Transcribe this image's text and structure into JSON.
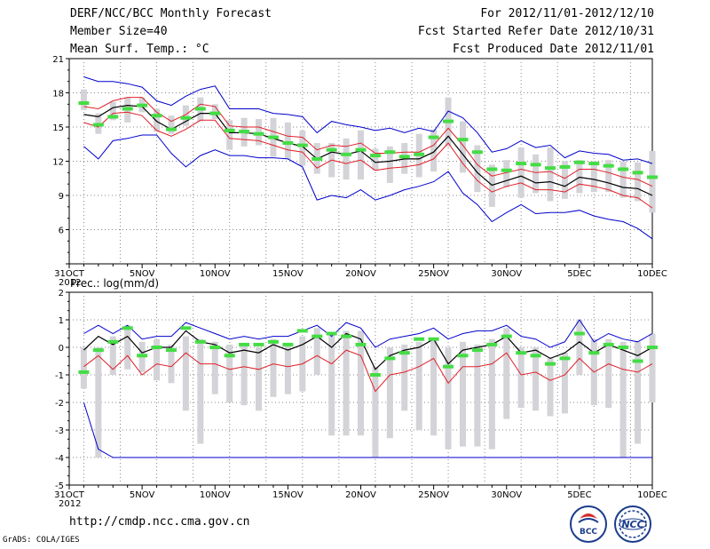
{
  "header": {
    "title": "DERF/NCC/BCC Monthly Forecast",
    "member_size": "Member Size=40",
    "variable": "Mean Surf. Temp.: °C",
    "period": "For 2012/11/01-2012/12/10",
    "started": "Fcst Started Refer Date 2012/10/31",
    "produced": "Fcst Produced Date 2012/11/01"
  },
  "footer": {
    "url": "http://cmdp.ncc.cma.gov.cn",
    "grads": "GrADS: COLA/IGES",
    "logo_bcc": "BCC",
    "logo_ncc": "NCC"
  },
  "colors": {
    "max_line": "#0000cc",
    "min_line": "#0000cc",
    "p90_line": "#e0202a",
    "p10_line": "#e0202a",
    "mean_line": "#000000",
    "box": "#d3d3d8",
    "obs_marker": "#44dd44",
    "grid": "#888888"
  },
  "chart_data": [
    {
      "type": "line",
      "title": "Mean Surf. Temp.: °C",
      "x_tick_labels": [
        "31OCT",
        "5NOV",
        "10NOV",
        "15NOV",
        "20NOV",
        "25NOV",
        "30NOV",
        "5DEC",
        "10DEC"
      ],
      "x_tick_days": [
        0,
        5,
        10,
        15,
        20,
        25,
        30,
        35,
        40
      ],
      "x_year_label": "2012",
      "ylim": [
        3,
        21
      ],
      "y_ticks": [
        3,
        6,
        9,
        12,
        15,
        18,
        21
      ],
      "y_tick_labels": [
        "",
        "6",
        "9",
        "12",
        "15",
        "18",
        "21"
      ],
      "days": [
        1,
        2,
        3,
        4,
        5,
        6,
        7,
        8,
        9,
        10,
        11,
        12,
        13,
        14,
        15,
        16,
        17,
        18,
        19,
        20,
        21,
        22,
        23,
        24,
        25,
        26,
        27,
        28,
        29,
        30,
        31,
        32,
        33,
        34,
        35,
        36,
        37,
        38,
        39,
        40
      ],
      "series": [
        {
          "name": "max",
          "values": [
            19.4,
            19.0,
            19.0,
            18.8,
            18.5,
            17.3,
            16.9,
            17.7,
            18.3,
            18.6,
            16.6,
            16.6,
            16.6,
            16.2,
            16.1,
            15.9,
            14.5,
            15.5,
            15.2,
            15.0,
            14.7,
            14.9,
            14.5,
            14.9,
            14.6,
            16.4,
            15.8,
            14.5,
            12.8,
            13.1,
            13.8,
            13.2,
            13.4,
            12.3,
            12.9,
            12.7,
            12.6,
            12.1,
            12.2,
            11.8
          ]
        },
        {
          "name": "p90",
          "values": [
            16.8,
            16.6,
            17.3,
            17.6,
            17.6,
            16.3,
            15.5,
            16.1,
            17.0,
            16.8,
            15.1,
            15.0,
            15.0,
            14.6,
            14.2,
            14.1,
            13.0,
            13.4,
            13.3,
            13.6,
            12.7,
            12.7,
            12.8,
            12.8,
            13.4,
            14.9,
            13.4,
            11.7,
            10.7,
            11.0,
            11.3,
            11.0,
            11.1,
            10.5,
            11.3,
            11.3,
            11.0,
            10.6,
            10.4,
            9.8
          ]
        },
        {
          "name": "mean",
          "values": [
            16.1,
            15.9,
            16.7,
            16.9,
            16.8,
            15.5,
            14.8,
            15.5,
            16.2,
            16.2,
            14.5,
            14.5,
            14.4,
            14.0,
            13.6,
            13.3,
            12.2,
            12.8,
            12.6,
            12.9,
            11.9,
            12.0,
            12.2,
            12.2,
            12.8,
            14.2,
            12.6,
            11.0,
            9.9,
            10.3,
            10.7,
            10.1,
            10.2,
            9.8,
            10.6,
            10.4,
            10.1,
            9.7,
            9.6,
            9.0
          ]
        },
        {
          "name": "p10",
          "values": [
            15.4,
            15.0,
            16.2,
            16.3,
            16.0,
            14.7,
            14.2,
            14.8,
            15.6,
            15.6,
            14.0,
            13.9,
            13.8,
            13.4,
            13.0,
            12.8,
            11.4,
            12.1,
            11.8,
            12.1,
            11.2,
            11.4,
            11.5,
            11.7,
            12.2,
            13.6,
            11.8,
            10.3,
            9.3,
            9.8,
            10.1,
            9.5,
            9.5,
            9.3,
            10.0,
            9.8,
            9.5,
            9.0,
            8.8,
            7.9
          ]
        },
        {
          "name": "min",
          "values": [
            13.3,
            12.2,
            13.8,
            14.0,
            14.3,
            14.3,
            12.7,
            11.5,
            12.5,
            13.0,
            12.5,
            12.5,
            12.3,
            12.3,
            12.2,
            11.5,
            8.6,
            9.0,
            8.8,
            9.5,
            8.6,
            9.0,
            9.5,
            9.8,
            10.2,
            11.1,
            9.2,
            8.2,
            6.7,
            7.5,
            8.2,
            7.4,
            7.5,
            7.5,
            7.7,
            7.2,
            6.9,
            6.7,
            6.1,
            5.2
          ]
        }
      ],
      "box_low": [
        16.5,
        14.4,
        15.6,
        15.4,
        16.3,
        14.6,
        14.4,
        15.1,
        15.5,
        15.7,
        13.0,
        13.3,
        13.4,
        12.4,
        12.2,
        11.6,
        10.9,
        10.6,
        10.4,
        10.4,
        11.2,
        10.1,
        10.9,
        10.6,
        11.1,
        13.3,
        11.0,
        9.3,
        8.0,
        9.7,
        8.8,
        9.2,
        8.5,
        8.7,
        9.2,
        9.3,
        9.3,
        8.8,
        8.5,
        7.5
      ],
      "box_high": [
        18.3,
        16.2,
        17.2,
        17.6,
        17.6,
        16.6,
        16.0,
        16.9,
        17.6,
        17.0,
        15.6,
        15.8,
        15.7,
        15.8,
        15.4,
        14.7,
        13.6,
        13.6,
        14.0,
        14.7,
        13.1,
        13.3,
        13.6,
        14.4,
        14.8,
        17.6,
        15.5,
        13.4,
        11.7,
        12.1,
        13.2,
        12.6,
        13.2,
        12.0,
        12.1,
        12.0,
        12.1,
        12.0,
        11.9,
        12.9
      ],
      "obs": [
        17.1,
        15.2,
        15.9,
        16.6,
        16.9,
        16.0,
        14.8,
        15.8,
        16.6,
        16.2,
        14.7,
        14.6,
        14.4,
        14.1,
        13.6,
        13.4,
        12.2,
        13.0,
        12.6,
        13.0,
        12.5,
        12.8,
        12.4,
        12.6,
        14.1,
        15.5,
        13.9,
        12.8,
        11.3,
        11.2,
        11.8,
        11.7,
        11.4,
        11.5,
        11.9,
        11.8,
        11.6,
        11.3,
        11.0,
        10.6
      ]
    },
    {
      "type": "line",
      "title": "Prec.: log(mm/d)",
      "x_tick_labels": [
        "31OCT",
        "5NOV",
        "10NOV",
        "15NOV",
        "20NOV",
        "25NOV",
        "30NOV",
        "5DEC",
        "10DEC"
      ],
      "x_tick_days": [
        0,
        5,
        10,
        15,
        20,
        25,
        30,
        35,
        40
      ],
      "x_year_label": "2012",
      "ylim": [
        -5,
        2
      ],
      "y_ticks": [
        -5,
        -4,
        -3,
        -2,
        -1,
        0,
        1,
        2
      ],
      "y_tick_labels": [
        "-5",
        "-4",
        "-3",
        "-2",
        "-1",
        "0",
        "1",
        "2"
      ],
      "days": [
        1,
        2,
        3,
        4,
        5,
        6,
        7,
        8,
        9,
        10,
        11,
        12,
        13,
        14,
        15,
        16,
        17,
        18,
        19,
        20,
        21,
        22,
        23,
        24,
        25,
        26,
        27,
        28,
        29,
        30,
        31,
        32,
        33,
        34,
        35,
        36,
        37,
        38,
        39,
        40
      ],
      "series": [
        {
          "name": "max",
          "values": [
            0.5,
            0.8,
            0.5,
            0.8,
            0.3,
            0.4,
            0.4,
            0.9,
            0.7,
            0.5,
            0.3,
            0.4,
            0.3,
            0.4,
            0.4,
            0.6,
            0.8,
            0.4,
            0.9,
            0.7,
            0.0,
            0.3,
            0.4,
            0.5,
            0.7,
            0.3,
            0.5,
            0.6,
            0.6,
            0.8,
            0.4,
            0.3,
            0.0,
            0.2,
            1.0,
            0.2,
            0.5,
            0.3,
            0.2,
            0.5
          ]
        },
        {
          "name": "mean",
          "values": [
            -0.1,
            0.4,
            0.1,
            0.4,
            -0.2,
            0.0,
            0.0,
            0.6,
            0.2,
            0.1,
            -0.2,
            -0.1,
            -0.2,
            0.1,
            -0.1,
            0.1,
            0.4,
            0.0,
            0.5,
            0.3,
            -0.8,
            -0.3,
            -0.1,
            0.0,
            0.3,
            -0.6,
            -0.1,
            0.0,
            0.1,
            0.4,
            -0.2,
            -0.1,
            -0.4,
            -0.2,
            0.2,
            -0.2,
            0.1,
            -0.1,
            -0.3,
            0.0
          ]
        },
        {
          "name": "p10",
          "values": [
            -0.7,
            -0.3,
            -0.8,
            -0.3,
            -1.0,
            -0.6,
            -0.7,
            -0.2,
            -0.6,
            -0.6,
            -0.8,
            -0.7,
            -0.8,
            -0.6,
            -0.7,
            -0.6,
            -0.3,
            -0.6,
            -0.1,
            -0.3,
            -1.6,
            -1.0,
            -0.9,
            -0.7,
            -0.4,
            -1.3,
            -0.7,
            -0.7,
            -0.6,
            -0.2,
            -1.0,
            -0.9,
            -1.2,
            -1.0,
            -0.4,
            -0.9,
            -0.6,
            -0.8,
            -0.9,
            -0.6
          ]
        },
        {
          "name": "min",
          "values": [
            -2.0,
            -3.7,
            -4.0,
            -4.0,
            -4.0,
            -4.0,
            -4.0,
            -4.0,
            -4.0,
            -4.0,
            -4.0,
            -4.0,
            -4.0,
            -4.0,
            -4.0,
            -4.0,
            -4.0,
            -4.0,
            -4.0,
            -4.0,
            -4.0,
            -4.0,
            -4.0,
            -4.0,
            -4.0,
            -4.0,
            -4.0,
            -4.0,
            -4.0,
            -4.0,
            -4.0,
            -4.0,
            -4.0,
            -4.0,
            -4.0,
            -4.0,
            -4.0,
            -4.0,
            -4.0,
            -4.0
          ]
        }
      ],
      "box_low": [
        -1.5,
        -4.0,
        -1.0,
        -0.8,
        -0.9,
        -1.2,
        -1.3,
        -2.3,
        -3.5,
        -1.7,
        -2.0,
        -2.1,
        -2.3,
        -1.8,
        -1.7,
        -1.6,
        -1.0,
        -3.2,
        -3.2,
        -3.2,
        -4.0,
        -3.3,
        -2.3,
        -3.0,
        -3.2,
        -3.7,
        -3.6,
        -3.6,
        -3.7,
        -2.6,
        -2.2,
        -2.3,
        -2.5,
        -2.4,
        -1.0,
        -2.1,
        -2.2,
        -4.0,
        -3.5,
        -2.0
      ],
      "box_high": [
        0.0,
        0.0,
        0.4,
        0.8,
        0.2,
        0.3,
        0.1,
        0.4,
        0.3,
        0.2,
        0.1,
        0.1,
        0.0,
        0.3,
        0.1,
        0.4,
        0.7,
        0.5,
        0.6,
        0.6,
        -0.7,
        0.0,
        0.1,
        0.2,
        0.3,
        0.0,
        0.2,
        0.1,
        0.3,
        0.7,
        0.0,
        0.0,
        -0.4,
        -0.2,
        1.0,
        0.3,
        0.3,
        0.2,
        0.2,
        0.5
      ],
      "obs": [
        -0.9,
        -0.1,
        0.2,
        0.7,
        -0.3,
        0.0,
        -0.1,
        0.7,
        0.2,
        0.0,
        -0.3,
        0.1,
        0.1,
        0.2,
        0.1,
        0.6,
        0.4,
        0.5,
        0.4,
        0.1,
        -1.0,
        -0.4,
        -0.2,
        0.3,
        0.3,
        -0.7,
        -0.3,
        -0.1,
        0.1,
        0.4,
        -0.2,
        -0.3,
        -0.6,
        -0.4,
        0.5,
        -0.2,
        0.1,
        0.0,
        -0.5,
        0.0
      ]
    }
  ]
}
